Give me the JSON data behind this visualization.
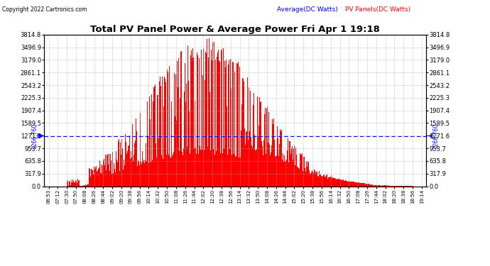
{
  "title": "Total PV Panel Power & Average Power Fri Apr 1 19:18",
  "copyright": "Copyright 2022 Cartronics.com",
  "average_label": "Average(DC Watts)",
  "pv_label": "PV Panels(DC Watts)",
  "average_value": 1266.76,
  "y_ticks": [
    0.0,
    317.9,
    635.8,
    953.7,
    1271.6,
    1589.5,
    1907.4,
    2225.3,
    2543.2,
    2861.1,
    3179.0,
    3496.9,
    3814.8
  ],
  "y_max": 3814.8,
  "x_labels": [
    "06:53",
    "07:12",
    "07:30",
    "07:50",
    "08:08",
    "08:26",
    "08:44",
    "09:02",
    "09:20",
    "09:38",
    "09:56",
    "10:14",
    "10:32",
    "10:50",
    "11:08",
    "11:26",
    "11:44",
    "12:02",
    "12:20",
    "12:38",
    "12:56",
    "13:14",
    "13:32",
    "13:50",
    "14:08",
    "14:26",
    "14:44",
    "15:02",
    "15:20",
    "15:38",
    "15:56",
    "16:14",
    "16:32",
    "16:50",
    "17:08",
    "17:26",
    "17:44",
    "18:02",
    "18:20",
    "18:38",
    "18:56",
    "19:14"
  ],
  "pv_color": "#FF0000",
  "average_line_color": "#0000FF",
  "background_color": "#ffffff",
  "grid_color": "#aaaaaa",
  "title_color": "#000000",
  "copyright_color": "#000000",
  "average_label_color": "#0000FF",
  "pv_label_color": "#FF0000"
}
